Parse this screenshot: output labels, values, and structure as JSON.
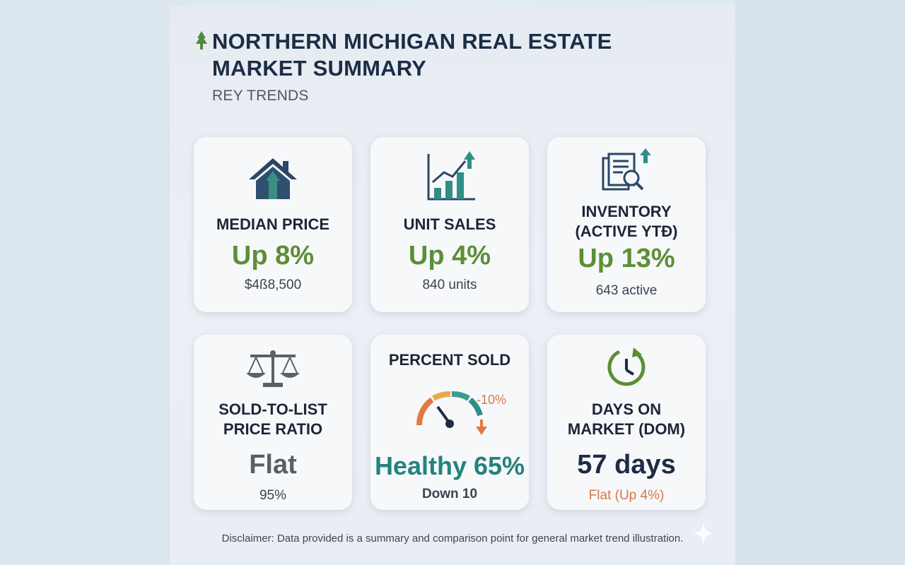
{
  "header": {
    "title_line1": "NORTHERN MICHIGAN REAL ESTATE",
    "title_line2": "MARKET SUMMARY",
    "subtitle": "REY TRENDS"
  },
  "cards": [
    {
      "label": "MEDIAN PRICE",
      "value": "Up 8%",
      "sub": "$4ß8,500",
      "icon": "house-arrow-icon"
    },
    {
      "label": "UNIT SALES",
      "value": "Up 4%",
      "sub": "840 units",
      "icon": "bar-chart-up-icon"
    },
    {
      "label_line1": "INVENTORY",
      "label_line2": "(ACTIVE YTÐ)",
      "value": "Up 13%",
      "sub": "643 active",
      "icon": "document-search-icon"
    },
    {
      "label_line1": "SOLD-TO-LIST",
      "label_line2": "PRICE RATIO",
      "value": "Flat",
      "sub": "95%",
      "icon": "scale-icon"
    },
    {
      "label": "PERCENT SOLD",
      "value": "Healthy 65%",
      "sub": "Down 10",
      "gauge_change": "-10%",
      "icon": "gauge-icon",
      "level_percent": 65
    },
    {
      "label_line1": "DAYS ON",
      "label_line2": "MARKET (DOM)",
      "value": "57 days",
      "sub": "Flat (Up 4%)",
      "icon": "clock-icon"
    }
  ],
  "disclaimer": "Disclaimer: Data provided is a summary and comparison point for general market trend illustration.",
  "colors": {
    "navy": "#1e2c44",
    "green": "#5b8f35",
    "teal": "#22837e",
    "orange": "#d8784b"
  }
}
